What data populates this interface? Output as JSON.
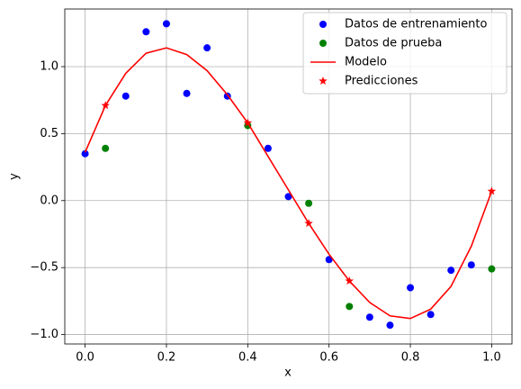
{
  "chart_data": {
    "type": "scatter",
    "xlabel": "x",
    "ylabel": "y",
    "xlim": [
      -0.05,
      1.05
    ],
    "ylim": [
      -1.07,
      1.43
    ],
    "xticks": [
      {
        "value": 0,
        "label": "0.0"
      },
      {
        "value": 0.2,
        "label": "0.2"
      },
      {
        "value": 0.4,
        "label": "0.4"
      },
      {
        "value": 0.6,
        "label": "0.6"
      },
      {
        "value": 0.8,
        "label": "0.8"
      },
      {
        "value": 1,
        "label": "1.0"
      }
    ],
    "yticks": [
      {
        "value": -1,
        "label": "−1.0"
      },
      {
        "value": -0.5,
        "label": "−0.5"
      },
      {
        "value": 0,
        "label": "0.0"
      },
      {
        "value": 0.5,
        "label": "0.5"
      },
      {
        "value": 1,
        "label": "1.0"
      }
    ],
    "grid": true,
    "legend": "upper right",
    "series": [
      {
        "name": "Datos de entrenamiento",
        "type": "scatter",
        "marker": "circle",
        "color": "#0000ff",
        "x": [
          0,
          0.1,
          0.15,
          0.2,
          0.25,
          0.3,
          0.35,
          0.45,
          0.5,
          0.6,
          0.7,
          0.75,
          0.8,
          0.85,
          0.9,
          0.95
        ],
        "values": [
          0.35,
          0.78,
          1.26,
          1.32,
          0.8,
          1.14,
          0.78,
          0.39,
          0.03,
          -0.44,
          -0.87,
          -0.93,
          -0.65,
          -0.85,
          -0.52,
          -0.48
        ]
      },
      {
        "name": "Datos de prueba",
        "type": "scatter",
        "marker": "circle",
        "color": "#008000",
        "x": [
          0.05,
          0.4,
          0.55,
          0.65,
          1.0
        ],
        "values": [
          0.39,
          0.56,
          -0.02,
          -0.79,
          -0.51
        ]
      },
      {
        "name": "Modelo",
        "type": "line",
        "color": "#ff0000",
        "x": [
          0,
          0.05,
          0.1,
          0.15,
          0.2,
          0.25,
          0.3,
          0.35,
          0.4,
          0.45,
          0.5,
          0.55,
          0.6,
          0.65,
          0.7,
          0.75,
          0.8,
          0.85,
          0.9,
          0.95,
          1.0
        ],
        "values": [
          0.36,
          0.71,
          0.95,
          1.1,
          1.14,
          1.09,
          0.97,
          0.79,
          0.58,
          0.33,
          0.08,
          -0.17,
          -0.4,
          -0.6,
          -0.76,
          -0.86,
          -0.88,
          -0.81,
          -0.64,
          -0.34,
          0.07
        ]
      },
      {
        "name": "Predicciones",
        "type": "scatter",
        "marker": "star",
        "color": "#ff0000",
        "x": [
          0.05,
          0.4,
          0.55,
          0.65,
          1.0
        ],
        "values": [
          0.71,
          0.58,
          -0.17,
          -0.6,
          0.07
        ]
      }
    ]
  }
}
